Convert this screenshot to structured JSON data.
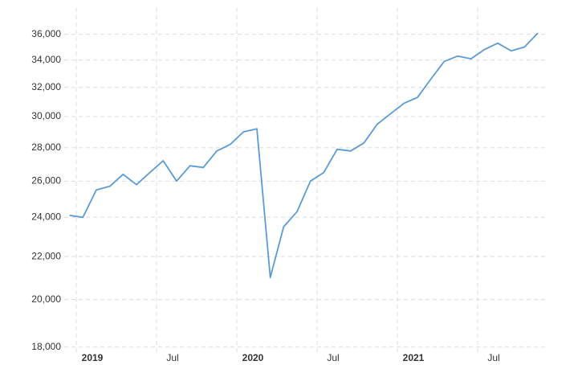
{
  "chart_data": {
    "type": "line",
    "log_scale": true,
    "grid": true,
    "x": [
      "2018-12",
      "2019-01",
      "2019-02",
      "2019-03",
      "2019-04",
      "2019-05",
      "2019-06",
      "2019-07",
      "2019-08",
      "2019-09",
      "2019-10",
      "2019-11",
      "2019-12",
      "2020-01",
      "2020-02",
      "2020-03",
      "2020-04",
      "2020-05",
      "2020-06",
      "2020-07",
      "2020-08",
      "2020-09",
      "2020-10",
      "2020-11",
      "2020-12",
      "2021-01",
      "2021-02",
      "2021-03",
      "2021-04",
      "2021-05",
      "2021-06",
      "2021-07",
      "2021-08",
      "2021-09",
      "2021-10",
      "2021-11"
    ],
    "series": [
      {
        "color": "#5b9bd5",
        "values": [
          24100,
          24000,
          25500,
          25700,
          26400,
          25800,
          26500,
          27200,
          26000,
          26900,
          26800,
          27800,
          28200,
          29000,
          29200,
          21000,
          23500,
          24300,
          26000,
          26500,
          27900,
          27800,
          28300,
          29500,
          30200,
          30900,
          31300,
          32600,
          33900,
          34300,
          34100,
          34800,
          35300,
          34700,
          35000,
          36100
        ]
      }
    ],
    "xticks": [
      {
        "value": "2019-01",
        "label": "2019"
      },
      {
        "value": "2019-07",
        "label": "Jul"
      },
      {
        "value": "2020-01",
        "label": "2020"
      },
      {
        "value": "2020-07",
        "label": "Jul"
      },
      {
        "value": "2021-01",
        "label": "2021"
      },
      {
        "value": "2021-07",
        "label": "Jul"
      }
    ],
    "ylim": [
      17800,
      38500
    ],
    "yticks": [
      {
        "value": 18000,
        "label": "18,000"
      },
      {
        "value": 20000,
        "label": "20,000"
      },
      {
        "value": 22000,
        "label": "22,000"
      },
      {
        "value": 24000,
        "label": "24,000"
      },
      {
        "value": 26000,
        "label": "26,000"
      },
      {
        "value": 28000,
        "label": "28,000"
      },
      {
        "value": 30000,
        "label": "30,000"
      },
      {
        "value": 32000,
        "label": "32,000"
      },
      {
        "value": 34000,
        "label": "34,000"
      },
      {
        "value": 36000,
        "label": "36,000"
      }
    ]
  }
}
